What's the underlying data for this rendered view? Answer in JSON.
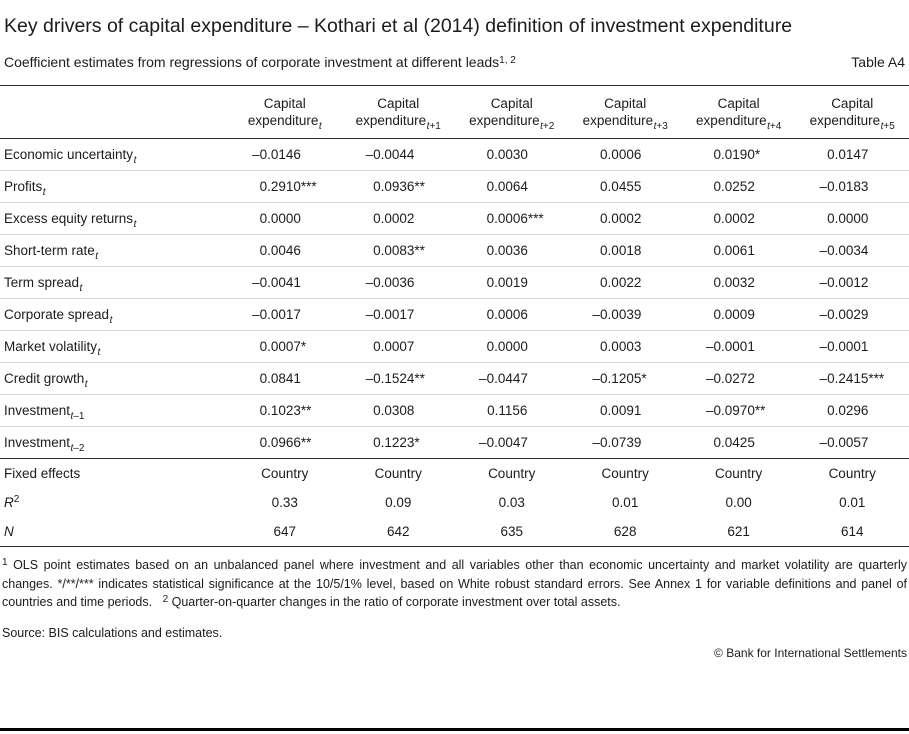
{
  "page": {
    "title": "Key drivers of capital expenditure – Kothari et al (2014) definition of investment expenditure",
    "subtitle": "Coefficient estimates from regressions of corporate investment at different leads",
    "subtitle_footnote_marker": "1, 2",
    "table_label": "Table A4",
    "source": "Source: BIS calculations and estimates.",
    "copyright": "© Bank for International Settlements"
  },
  "table": {
    "column_header_top": "Capital",
    "column_header_bottom": "expenditure",
    "column_subscripts": [
      {
        "it": "t",
        "rest": ""
      },
      {
        "it": "t",
        "rest": "+1"
      },
      {
        "it": "t",
        "rest": "+2"
      },
      {
        "it": "t",
        "rest": "+3"
      },
      {
        "it": "t",
        "rest": "+4"
      },
      {
        "it": "t",
        "rest": "+5"
      }
    ],
    "rows": [
      {
        "label": "Economic uncertainty",
        "sub": {
          "it": "t",
          "rest": ""
        },
        "values": [
          "–0.0146",
          "–0.0044",
          "0.0030",
          "0.0006",
          "0.0190*",
          "0.0147"
        ]
      },
      {
        "label": "Profits",
        "sub": {
          "it": "t",
          "rest": ""
        },
        "values": [
          "0.2910***",
          "0.0936**",
          "0.0064",
          "0.0455",
          "0.0252",
          "–0.0183"
        ]
      },
      {
        "label": "Excess equity returns",
        "sub": {
          "it": "t",
          "rest": ""
        },
        "values": [
          "0.0000",
          "0.0002",
          "0.0006***",
          "0.0002",
          "0.0002",
          "0.0000"
        ]
      },
      {
        "label": "Short-term rate",
        "sub": {
          "it": "t",
          "rest": ""
        },
        "values": [
          "0.0046",
          "0.0083**",
          "0.0036",
          "0.0018",
          "0.0061",
          "–0.0034"
        ]
      },
      {
        "label": "Term spread",
        "sub": {
          "it": "t",
          "rest": ""
        },
        "values": [
          "–0.0041",
          "–0.0036",
          "0.0019",
          "0.0022",
          "0.0032",
          "–0.0012"
        ]
      },
      {
        "label": "Corporate spread",
        "sub": {
          "it": "t",
          "rest": ""
        },
        "values": [
          "–0.0017",
          "–0.0017",
          "0.0006",
          "–0.0039",
          "0.0009",
          "–0.0029"
        ]
      },
      {
        "label": "Market volatility",
        "sub": {
          "it": "t",
          "rest": ""
        },
        "values": [
          "0.0007*",
          "0.0007",
          "0.0000",
          "0.0003",
          "–0.0001",
          "–0.0001"
        ]
      },
      {
        "label": "Credit growth",
        "sub": {
          "it": "t",
          "rest": ""
        },
        "values": [
          "0.0841",
          "–0.1524**",
          "–0.0447",
          "–0.1205*",
          "–0.0272",
          "–0.2415***"
        ]
      },
      {
        "label": "Investment",
        "sub": {
          "it": "t",
          "rest": "–1"
        },
        "values": [
          "0.1023**",
          "0.0308",
          "0.1156",
          "0.0091",
          "–0.0970**",
          "0.0296"
        ]
      },
      {
        "label": "Investment",
        "sub": {
          "it": "t",
          "rest": "–2"
        },
        "values": [
          "0.0966**",
          "0.1223*",
          "–0.0047",
          "–0.0739",
          "0.0425",
          "–0.0057"
        ]
      }
    ],
    "summary_rows": [
      {
        "label": "Fixed effects",
        "italic": false,
        "sup": "",
        "values": [
          "Country",
          "Country",
          "Country",
          "Country",
          "Country",
          "Country"
        ]
      },
      {
        "label": "R",
        "italic": true,
        "sup": "2",
        "values": [
          "0.33",
          "0.09",
          "0.03",
          "0.01",
          "0.00",
          "0.01"
        ]
      },
      {
        "label": "N",
        "italic": true,
        "sup": "",
        "values": [
          "647",
          "642",
          "635",
          "628",
          "621",
          "614"
        ]
      }
    ]
  },
  "footnotes": [
    {
      "marker": "1",
      "text": "OLS point estimates based on an unbalanced panel where investment and all variables other than economic uncertainty and market volatility are quarterly changes. */**/*** indicates statistical significance at the 10/5/1% level, based on White robust standard errors. See Annex 1 for variable definitions and panel of countries and time periods."
    },
    {
      "marker": "2",
      "text": "Quarter-on-quarter changes in the ratio of corporate investment over total assets."
    }
  ]
}
